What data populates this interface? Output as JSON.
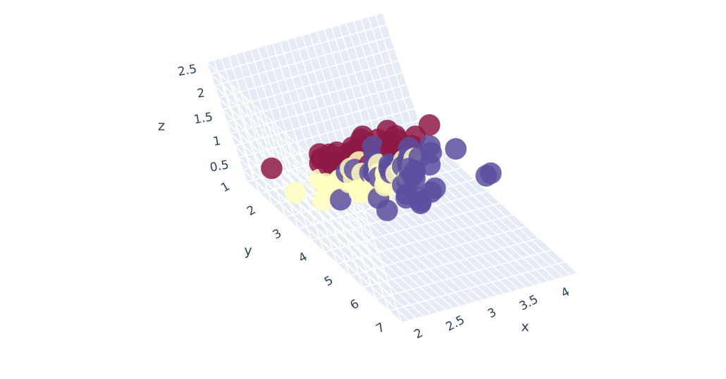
{
  "chart_data": {
    "type": "scatter",
    "projection": "3d",
    "axes": {
      "x": {
        "title": "x",
        "ticks": [
          "2",
          "2.5",
          "3",
          "3.5",
          "4"
        ]
      },
      "y": {
        "title": "y",
        "ticks": [
          "1",
          "2",
          "3",
          "4",
          "5",
          "6",
          "7"
        ]
      },
      "z": {
        "title": "z",
        "ticks": [
          "0.5",
          "1",
          "1.5",
          "2",
          "2.5"
        ]
      }
    },
    "ranges": {
      "x": [
        2,
        4.4
      ],
      "y": [
        1,
        7
      ],
      "z": [
        0,
        2.5
      ]
    },
    "grid": true,
    "legend": "none",
    "series": [
      {
        "color": "#8e1a45",
        "points": [
          [
            3.0,
            1.1,
            0.2
          ],
          [
            3.1,
            1.2,
            0.2
          ],
          [
            3.4,
            1.3,
            0.2
          ],
          [
            3.5,
            1.4,
            0.2
          ],
          [
            3.2,
            1.4,
            0.2
          ],
          [
            3.6,
            1.5,
            0.2
          ],
          [
            3.3,
            1.5,
            0.3
          ],
          [
            3.9,
            1.7,
            0.4
          ],
          [
            3.4,
            1.5,
            0.2
          ],
          [
            2.9,
            1.4,
            0.2
          ],
          [
            3.1,
            1.5,
            0.1
          ],
          [
            3.7,
            1.5,
            0.2
          ],
          [
            3.4,
            1.6,
            0.2
          ],
          [
            3.0,
            1.4,
            0.1
          ],
          [
            3.0,
            1.1,
            0.1
          ],
          [
            4.0,
            1.2,
            0.2
          ],
          [
            4.4,
            1.5,
            0.4
          ],
          [
            3.9,
            1.3,
            0.4
          ],
          [
            3.5,
            1.4,
            0.3
          ],
          [
            3.8,
            1.7,
            0.3
          ],
          [
            3.8,
            1.5,
            0.3
          ],
          [
            3.4,
            1.7,
            0.2
          ],
          [
            3.7,
            1.5,
            0.4
          ],
          [
            3.6,
            1.0,
            0.2
          ],
          [
            3.3,
            1.7,
            0.5
          ],
          [
            3.4,
            1.9,
            0.2
          ],
          [
            3.0,
            1.6,
            0.2
          ],
          [
            3.4,
            1.6,
            0.4
          ],
          [
            3.5,
            1.5,
            0.2
          ],
          [
            3.2,
            1.6,
            0.2
          ],
          [
            3.1,
            1.6,
            0.2
          ],
          [
            4.1,
            1.5,
            0.1
          ],
          [
            4.2,
            1.4,
            0.2
          ],
          [
            3.5,
            1.3,
            0.2
          ],
          [
            3.2,
            1.2,
            0.2
          ],
          [
            2.3,
            1.3,
            0.3
          ],
          [
            3.5,
            1.6,
            0.6
          ],
          [
            3.8,
            1.9,
            0.4
          ],
          [
            3.8,
            1.6,
            0.2
          ],
          [
            3.3,
            1.4,
            0.2
          ]
        ]
      },
      {
        "color": "#fefebe",
        "points": [
          [
            3.2,
            4.7,
            1.4
          ],
          [
            3.2,
            4.5,
            1.5
          ],
          [
            3.1,
            4.9,
            1.5
          ],
          [
            2.3,
            4.0,
            1.3
          ],
          [
            2.8,
            4.6,
            1.5
          ],
          [
            2.8,
            4.5,
            1.3
          ],
          [
            3.3,
            4.7,
            1.6
          ],
          [
            2.4,
            3.3,
            1.0
          ],
          [
            2.9,
            4.6,
            1.3
          ],
          [
            2.7,
            3.9,
            1.4
          ],
          [
            2.0,
            3.5,
            1.0
          ],
          [
            3.0,
            4.2,
            1.5
          ],
          [
            2.2,
            4.0,
            1.0
          ],
          [
            2.9,
            4.7,
            1.4
          ],
          [
            2.9,
            3.6,
            1.3
          ],
          [
            3.1,
            4.4,
            1.4
          ],
          [
            3.0,
            4.5,
            1.5
          ],
          [
            2.7,
            4.1,
            1.0
          ],
          [
            2.2,
            4.5,
            1.5
          ],
          [
            2.5,
            3.9,
            1.1
          ],
          [
            3.2,
            4.8,
            1.8
          ],
          [
            2.8,
            4.0,
            1.3
          ],
          [
            2.5,
            4.9,
            1.5
          ],
          [
            2.8,
            4.7,
            1.2
          ],
          [
            2.9,
            4.3,
            1.3
          ],
          [
            3.0,
            4.4,
            1.4
          ],
          [
            2.8,
            4.8,
            1.4
          ],
          [
            3.0,
            5.0,
            1.7
          ],
          [
            2.9,
            4.5,
            1.5
          ],
          [
            2.6,
            3.5,
            1.0
          ],
          [
            2.4,
            3.8,
            1.1
          ],
          [
            2.7,
            3.9,
            1.2
          ],
          [
            2.7,
            5.1,
            1.6
          ],
          [
            3.0,
            4.5,
            1.5
          ],
          [
            3.4,
            4.5,
            1.6
          ],
          [
            2.3,
            4.4,
            1.3
          ],
          [
            2.5,
            4.0,
            1.3
          ],
          [
            2.6,
            4.4,
            1.2
          ],
          [
            2.6,
            4.0,
            1.2
          ],
          [
            3.0,
            4.2,
            1.2
          ]
        ]
      },
      {
        "color": "#5c4f9f",
        "points": [
          [
            3.3,
            6.0,
            2.5
          ],
          [
            2.7,
            5.1,
            1.9
          ],
          [
            3.0,
            5.9,
            2.1
          ],
          [
            2.9,
            5.6,
            1.8
          ],
          [
            3.0,
            5.8,
            2.2
          ],
          [
            3.0,
            6.6,
            2.1
          ],
          [
            2.5,
            4.5,
            1.7
          ],
          [
            2.9,
            6.3,
            1.8
          ],
          [
            2.5,
            5.8,
            1.8
          ],
          [
            3.6,
            6.1,
            2.5
          ],
          [
            3.2,
            5.1,
            2.0
          ],
          [
            2.7,
            5.3,
            1.9
          ],
          [
            3.0,
            5.5,
            2.1
          ],
          [
            2.5,
            5.0,
            2.0
          ],
          [
            2.8,
            5.1,
            2.4
          ],
          [
            3.2,
            5.3,
            2.3
          ],
          [
            3.0,
            5.5,
            1.8
          ],
          [
            3.8,
            6.7,
            2.2
          ],
          [
            2.6,
            6.9,
            2.3
          ],
          [
            2.2,
            5.0,
            1.5
          ],
          [
            3.2,
            5.7,
            2.3
          ],
          [
            2.8,
            4.9,
            2.0
          ],
          [
            2.8,
            6.7,
            2.0
          ],
          [
            2.7,
            4.9,
            1.8
          ],
          [
            3.3,
            5.7,
            2.1
          ],
          [
            3.2,
            6.0,
            1.8
          ],
          [
            2.8,
            4.8,
            1.8
          ],
          [
            3.0,
            4.9,
            1.8
          ],
          [
            2.8,
            5.6,
            2.1
          ],
          [
            3.0,
            5.8,
            1.6
          ],
          [
            2.8,
            6.1,
            1.9
          ],
          [
            3.8,
            6.4,
            2.0
          ],
          [
            2.8,
            5.6,
            2.2
          ],
          [
            2.6,
            5.6,
            1.4
          ],
          [
            3.0,
            6.1,
            2.3
          ],
          [
            3.4,
            5.6,
            2.4
          ],
          [
            3.1,
            5.5,
            1.8
          ],
          [
            3.0,
            4.8,
            1.8
          ],
          [
            3.1,
            5.4,
            2.1
          ],
          [
            2.7,
            5.1,
            1.9
          ]
        ]
      }
    ]
  }
}
